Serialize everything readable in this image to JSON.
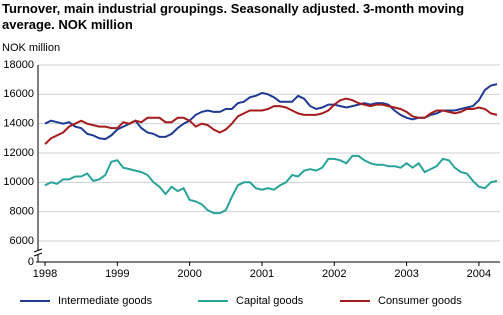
{
  "chart_data": {
    "type": "line",
    "title": "Turnover, main industrial groupings. Seasonally adjusted. 3-month moving average. NOK million",
    "y_label": "NOK million",
    "categories": [
      "1998",
      null,
      null,
      null,
      null,
      null,
      null,
      null,
      null,
      null,
      null,
      null,
      "1999",
      null,
      null,
      null,
      null,
      null,
      null,
      null,
      null,
      null,
      null,
      null,
      "2000",
      null,
      null,
      null,
      null,
      null,
      null,
      null,
      null,
      null,
      null,
      null,
      "2001",
      null,
      null,
      null,
      null,
      null,
      null,
      null,
      null,
      null,
      null,
      null,
      "2002",
      null,
      null,
      null,
      null,
      null,
      null,
      null,
      null,
      null,
      null,
      null,
      "2003",
      null,
      null,
      null,
      null,
      null,
      null,
      null,
      null,
      null,
      null,
      null,
      "2004",
      null,
      null,
      null
    ],
    "series": [
      {
        "name": "Intermediate goods",
        "color": "#1f3a93",
        "values": [
          14000,
          14200,
          14100,
          14000,
          14100,
          13800,
          13700,
          13300,
          13200,
          13000,
          12950,
          13200,
          13600,
          13800,
          14000,
          14200,
          13700,
          13400,
          13300,
          13100,
          13100,
          13300,
          13700,
          14000,
          14200,
          14600,
          14800,
          14900,
          14800,
          14800,
          15000,
          15000,
          15400,
          15500,
          15800,
          15900,
          16100,
          16000,
          15800,
          15500,
          15500,
          15500,
          15900,
          15700,
          15200,
          15000,
          15100,
          15300,
          15300,
          15200,
          15100,
          15200,
          15300,
          15400,
          15300,
          15400,
          15400,
          15300,
          14900,
          14600,
          14400,
          14300,
          14400,
          14400,
          14600,
          14700,
          14900,
          14900,
          14900,
          15000,
          15100,
          15200,
          15600,
          16300,
          16600,
          16700
        ]
      },
      {
        "name": "Capital goods",
        "color": "#2aa39a",
        "values": [
          9800,
          10000,
          9900,
          10200,
          10200,
          10400,
          10400,
          10600,
          10100,
          10200,
          10500,
          11400,
          11500,
          11000,
          10900,
          10800,
          10700,
          10500,
          10000,
          9700,
          9200,
          9700,
          9400,
          9600,
          8800,
          8700,
          8500,
          8100,
          7900,
          7900,
          8100,
          9000,
          9800,
          10000,
          10000,
          9600,
          9500,
          9600,
          9500,
          9800,
          10000,
          10500,
          10400,
          10800,
          10900,
          10800,
          11000,
          11600,
          11600,
          11500,
          11300,
          11800,
          11800,
          11500,
          11300,
          11200,
          11200,
          11100,
          11100,
          11000,
          11300,
          11000,
          11300,
          10700,
          10900,
          11100,
          11600,
          11500,
          11000,
          10700,
          10600,
          10100,
          9700,
          9600,
          10000,
          10100
        ]
      },
      {
        "name": "Consumer goods",
        "color": "#a51c1c",
        "values": [
          12600,
          13000,
          13200,
          13400,
          13800,
          14000,
          14200,
          14000,
          13900,
          13800,
          13800,
          13700,
          13700,
          14100,
          14000,
          14200,
          14100,
          14400,
          14400,
          14400,
          14100,
          14100,
          14400,
          14400,
          14200,
          13800,
          14000,
          13900,
          13600,
          13400,
          13600,
          14000,
          14500,
          14700,
          14900,
          14900,
          14900,
          15000,
          15200,
          15200,
          15100,
          14900,
          14700,
          14600,
          14600,
          14600,
          14700,
          14900,
          15300,
          15600,
          15700,
          15600,
          15400,
          15300,
          15200,
          15300,
          15300,
          15200,
          15100,
          15000,
          14800,
          14500,
          14400,
          14400,
          14700,
          14900,
          14900,
          14800,
          14700,
          14800,
          15000,
          15000,
          15100,
          15000,
          14700,
          14600
        ]
      }
    ],
    "ylim": [
      0,
      18000
    ],
    "yticks": [
      0,
      6000,
      8000,
      10000,
      12000,
      14000,
      16000,
      18000
    ],
    "axis_break": true,
    "grid": true,
    "legend": "bottom"
  }
}
